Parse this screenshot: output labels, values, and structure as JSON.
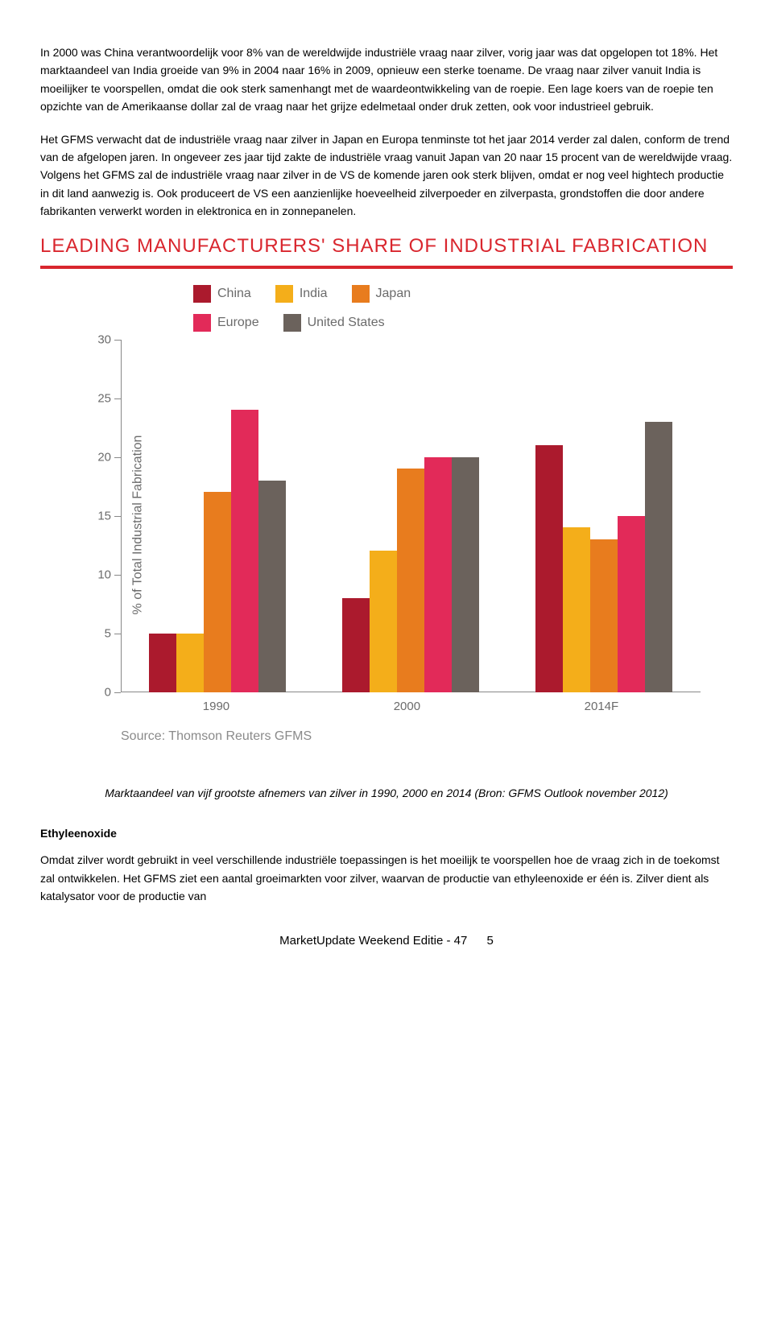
{
  "paragraphs": {
    "p1": "In 2000 was China verantwoordelijk voor 8% van de wereldwijde industriële vraag naar zilver, vorig jaar was dat opgelopen tot 18%. Het marktaandeel van India groeide van 9% in 2004 naar 16% in 2009, opnieuw een sterke toename. De vraag naar zilver vanuit India is moeilijker te voorspellen, omdat die ook sterk samenhangt met de waardeontwikkeling van de roepie. Een lage koers van de roepie ten opzichte van de Amerikaanse dollar zal de vraag naar het grijze edelmetaal onder druk zetten, ook voor industrieel gebruik.",
    "p2": "Het GFMS verwacht dat de industriële vraag naar zilver in Japan en Europa tenminste tot het jaar 2014 verder zal dalen, conform de trend van de afgelopen jaren. In ongeveer zes jaar tijd zakte de industriële vraag vanuit Japan van 20 naar 15 procent van de wereldwijde vraag. Volgens het GFMS zal de industriële vraag naar zilver in de VS de komende jaren ook sterk blijven, omdat er nog veel hightech productie in dit land aanwezig is. Ook produceert de VS een aanzienlijke hoeveelheid zilverpoeder en zilverpasta, grondstoffen die door andere fabrikanten verwerkt worden in elektronica en in zonnepanelen.",
    "p3": "Omdat zilver wordt gebruikt in veel verschillende industriële toepassingen is het moeilijk te voorspellen hoe de vraag zich in de toekomst zal ontwikkelen. Het GFMS ziet een aantal groeimarkten voor zilver, waarvan de productie van ethyleenoxide er één is. Zilver dient als katalysator voor de productie van"
  },
  "chart": {
    "title": "LEADING MANUFACTURERS' SHARE OF INDUSTRIAL FABRICATION",
    "title_color": "#d9262e",
    "rule_color": "#d9262e",
    "ylabel": "% of Total Industrial Fabrication",
    "ylim": [
      0,
      30
    ],
    "ytick_step": 5,
    "yticks": [
      0,
      5,
      10,
      15,
      20,
      25,
      30
    ],
    "categories": [
      "1990",
      "2000",
      "2014F"
    ],
    "series": [
      {
        "name": "China",
        "color": "#ab1a2d"
      },
      {
        "name": "India",
        "color": "#f4ae1a"
      },
      {
        "name": "Japan",
        "color": "#e87c1e"
      },
      {
        "name": "Europe",
        "color": "#e22a59"
      },
      {
        "name": "United States",
        "color": "#6b625c"
      }
    ],
    "data": {
      "1990": {
        "China": 5,
        "India": 5,
        "Japan": 17,
        "Europe": 24,
        "United States": 18
      },
      "2000": {
        "China": 8,
        "India": 12,
        "Japan": 19,
        "Europe": 20,
        "United States": 20
      },
      "2014F": {
        "China": 21,
        "India": 14,
        "Japan": 13,
        "Europe": 15,
        "United States": 23
      }
    },
    "source": "Source: Thomson Reuters GFMS",
    "label_color": "#6b6b6b",
    "tick_fontsize": 15
  },
  "caption": "Marktaandeel van vijf grootste afnemers van zilver in 1990, 2000 en 2014 (Bron: GFMS Outlook november 2012)",
  "section_head": "Ethyleenoxide",
  "footer": {
    "text": "MarketUpdate Weekend Editie - 47",
    "page": "5"
  }
}
